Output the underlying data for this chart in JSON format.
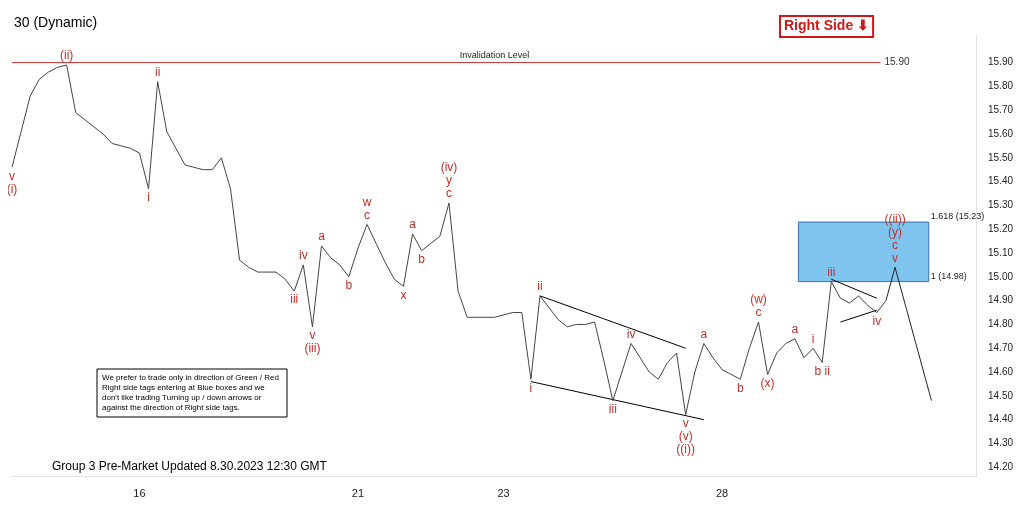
{
  "chart_data": {
    "type": "line",
    "title": "30 (Dynamic)",
    "marker": "none",
    "legend": false,
    "grid": false,
    "categories": [
      null,
      null,
      null,
      null,
      null,
      null,
      null,
      null,
      null,
      null,
      null,
      null,
      null,
      null,
      "16",
      null,
      null,
      null,
      null,
      null,
      null,
      null,
      null,
      null,
      null,
      null,
      null,
      null,
      null,
      null,
      null,
      null,
      null,
      null,
      null,
      null,
      null,
      null,
      "21",
      null,
      null,
      null,
      null,
      null,
      null,
      null,
      null,
      null,
      null,
      null,
      null,
      null,
      null,
      null,
      "23",
      null,
      null,
      null,
      null,
      null,
      null,
      null,
      null,
      null,
      null,
      null,
      null,
      null,
      null,
      null,
      null,
      null,
      null,
      null,
      null,
      null,
      null,
      null,
      "28",
      null,
      null,
      null,
      null,
      null,
      null,
      null,
      null,
      null,
      null,
      null,
      null,
      null,
      null,
      null,
      null,
      null,
      null,
      null,
      null,
      null,
      null,
      null,
      null,
      null,
      null,
      null,
      null
    ],
    "ylim": [
      14.16,
      16.02
    ],
    "yticks": [
      {
        "value": 14.2,
        "label": "14.20"
      },
      {
        "value": 14.3,
        "label": "14.30"
      },
      {
        "value": 14.4,
        "label": "14.40"
      },
      {
        "value": 14.5,
        "label": "14.50"
      },
      {
        "value": 14.6,
        "label": "14.60"
      },
      {
        "value": 14.7,
        "label": "14.70"
      },
      {
        "value": 14.8,
        "label": "14.80"
      },
      {
        "value": 14.9,
        "label": "14.90"
      },
      {
        "value": 15,
        "label": "15.00"
      },
      {
        "value": 15.1,
        "label": "15.10"
      },
      {
        "value": 15.2,
        "label": "15.20"
      },
      {
        "value": 15.3,
        "label": "15.30"
      },
      {
        "value": 15.4,
        "label": "15.40"
      },
      {
        "value": 15.5,
        "label": "15.50"
      },
      {
        "value": 15.6,
        "label": "15.60"
      },
      {
        "value": 15.7,
        "label": "15.70"
      },
      {
        "value": 15.8,
        "label": "15.80"
      },
      {
        "value": 15.9,
        "label": "15.90"
      }
    ],
    "series": [
      {
        "type": "line",
        "color": "#444444",
        "values": [
          15.46,
          15.61,
          15.76,
          15.83,
          15.86,
          15.88,
          15.89,
          15.69,
          15.66,
          15.63,
          15.6,
          15.56,
          15.55,
          15.54,
          15.52,
          15.37,
          15.82,
          15.61,
          15.54,
          15.47,
          15.46,
          15.45,
          15.45,
          15.5,
          15.37,
          15.07,
          15.04,
          15.02,
          15.02,
          15.02,
          14.99,
          14.94,
          15.05,
          14.79,
          15.13,
          15.08,
          15.05,
          15,
          15.12,
          15.22,
          15.14,
          15.06,
          14.99,
          14.96,
          15.18,
          15.11,
          15.14,
          15.17,
          15.31,
          14.94,
          14.83,
          14.83,
          14.83,
          14.83,
          14.84,
          14.85,
          14.85,
          14.57,
          14.92,
          14.87,
          14.82,
          14.79,
          14.8,
          14.8,
          14.81,
          14.65,
          14.48,
          14.6,
          14.72,
          14.66,
          14.6,
          14.57,
          14.64,
          14.68,
          14.42,
          14.6,
          14.72,
          14.66,
          14.61,
          14.59,
          14.57,
          14.7,
          14.81,
          14.59,
          14.68,
          14.72,
          14.74,
          14.66,
          14.7,
          14.64,
          14.98,
          14.91,
          14.89,
          14.92,
          14.88,
          14.85,
          14.9,
          null,
          null,
          null,
          null,
          null,
          null,
          null,
          null,
          null,
          null
        ],
        "value_labels": [
          "v\n(i)",
          null,
          null,
          null,
          null,
          null,
          "(ii)",
          null,
          null,
          null,
          null,
          null,
          null,
          null,
          null,
          "i",
          "ii",
          null,
          null,
          null,
          null,
          null,
          null,
          null,
          null,
          null,
          null,
          null,
          null,
          null,
          null,
          "iii",
          "iv",
          "v\n(iii)",
          "a",
          null,
          null,
          "b",
          null,
          "w\nc",
          null,
          null,
          null,
          "x",
          "a",
          "b",
          null,
          null,
          "(iv)\ny\nc",
          null,
          null,
          null,
          null,
          null,
          null,
          null,
          null,
          "i",
          "ii",
          null,
          null,
          null,
          null,
          null,
          null,
          null,
          "iii",
          null,
          "iv",
          null,
          null,
          null,
          null,
          null,
          "v\n(v)\n((i))",
          null,
          "a",
          null,
          null,
          null,
          "b",
          null,
          "(w)\nc",
          "(x)",
          null,
          null,
          "a",
          null,
          "i",
          "b ii",
          "iii",
          null,
          null,
          null,
          null,
          "iv",
          null,
          null,
          null,
          null,
          null,
          null,
          null,
          null,
          null,
          null,
          null
        ]
      },
      {
        "type": "line",
        "color": "#000000",
        "values": [
          null,
          null,
          null,
          null,
          null,
          null,
          null,
          null,
          null,
          null,
          null,
          null,
          null,
          null,
          null,
          null,
          null,
          null,
          null,
          null,
          null,
          null,
          null,
          null,
          null,
          null,
          null,
          null,
          null,
          null,
          null,
          null,
          null,
          null,
          null,
          null,
          null,
          null,
          null,
          null,
          null,
          null,
          null,
          null,
          null,
          null,
          null,
          null,
          null,
          null,
          null,
          null,
          null,
          null,
          null,
          null,
          null,
          null,
          14.92,
          null,
          null,
          null,
          null,
          null,
          null,
          null,
          null,
          null,
          null,
          null,
          null,
          null,
          null,
          null,
          14.7,
          null,
          null,
          null,
          null,
          null,
          null,
          null,
          null,
          null,
          null,
          null,
          null,
          null,
          null,
          null,
          null,
          null,
          null,
          null,
          null,
          null,
          null,
          null,
          null,
          null,
          null,
          null,
          null,
          null,
          null,
          null,
          null
        ]
      },
      {
        "type": "line",
        "color": "#000000",
        "values": [
          null,
          null,
          null,
          null,
          null,
          null,
          null,
          null,
          null,
          null,
          null,
          null,
          null,
          null,
          null,
          null,
          null,
          null,
          null,
          null,
          null,
          null,
          null,
          null,
          null,
          null,
          null,
          null,
          null,
          null,
          null,
          null,
          null,
          null,
          null,
          null,
          null,
          null,
          null,
          null,
          null,
          null,
          null,
          null,
          null,
          null,
          null,
          null,
          null,
          null,
          null,
          null,
          null,
          null,
          null,
          null,
          null,
          14.56,
          null,
          null,
          null,
          null,
          null,
          null,
          null,
          null,
          null,
          null,
          null,
          null,
          null,
          null,
          null,
          null,
          null,
          null,
          14.4,
          null,
          null,
          null,
          null,
          null,
          null,
          null,
          null,
          null,
          null,
          null,
          null,
          null,
          null,
          null,
          null,
          null,
          null,
          null,
          null,
          null,
          null,
          null,
          null,
          null,
          null,
          null,
          null,
          null,
          null
        ]
      },
      {
        "type": "line",
        "color": "#000000",
        "values": [
          null,
          null,
          null,
          null,
          null,
          null,
          null,
          null,
          null,
          null,
          null,
          null,
          null,
          null,
          null,
          null,
          null,
          null,
          null,
          null,
          null,
          null,
          null,
          null,
          null,
          null,
          null,
          null,
          null,
          null,
          null,
          null,
          null,
          null,
          null,
          null,
          null,
          null,
          null,
          null,
          null,
          null,
          null,
          null,
          null,
          null,
          null,
          null,
          null,
          null,
          null,
          null,
          null,
          null,
          null,
          null,
          null,
          null,
          null,
          null,
          null,
          null,
          null,
          null,
          null,
          null,
          null,
          null,
          null,
          null,
          null,
          null,
          null,
          null,
          null,
          null,
          null,
          null,
          null,
          null,
          null,
          null,
          null,
          null,
          null,
          null,
          null,
          null,
          null,
          null,
          14.99,
          null,
          null,
          null,
          null,
          14.91,
          null,
          null,
          null,
          null,
          null,
          null,
          null,
          null,
          null,
          null,
          null
        ]
      },
      {
        "type": "line",
        "color": "#000000",
        "values": [
          null,
          null,
          null,
          null,
          null,
          null,
          null,
          null,
          null,
          null,
          null,
          null,
          null,
          null,
          null,
          null,
          null,
          null,
          null,
          null,
          null,
          null,
          null,
          null,
          null,
          null,
          null,
          null,
          null,
          null,
          null,
          null,
          null,
          null,
          null,
          null,
          null,
          null,
          null,
          null,
          null,
          null,
          null,
          null,
          null,
          null,
          null,
          null,
          null,
          null,
          null,
          null,
          null,
          null,
          null,
          null,
          null,
          null,
          null,
          null,
          null,
          null,
          null,
          null,
          null,
          null,
          null,
          null,
          null,
          null,
          null,
          null,
          null,
          null,
          null,
          null,
          null,
          null,
          null,
          null,
          null,
          null,
          null,
          null,
          null,
          null,
          null,
          null,
          null,
          null,
          null,
          14.81,
          null,
          null,
          null,
          14.86,
          null,
          null,
          null,
          null,
          null,
          null,
          null,
          null,
          null,
          null,
          null
        ]
      },
      {
        "type": "line",
        "color": "#222222",
        "values": [
          null,
          null,
          null,
          null,
          null,
          null,
          null,
          null,
          null,
          null,
          null,
          null,
          null,
          null,
          null,
          null,
          null,
          null,
          null,
          null,
          null,
          null,
          null,
          null,
          null,
          null,
          null,
          null,
          null,
          null,
          null,
          null,
          null,
          null,
          null,
          null,
          null,
          null,
          null,
          null,
          null,
          null,
          null,
          null,
          null,
          null,
          null,
          null,
          null,
          null,
          null,
          null,
          null,
          null,
          null,
          null,
          null,
          null,
          null,
          null,
          null,
          null,
          null,
          null,
          null,
          null,
          null,
          null,
          null,
          null,
          null,
          null,
          null,
          null,
          null,
          null,
          null,
          null,
          null,
          null,
          null,
          null,
          null,
          null,
          null,
          null,
          null,
          null,
          null,
          null,
          null,
          null,
          null,
          null,
          null,
          null,
          14.9,
          15.04,
          null,
          null,
          null,
          14.48,
          null,
          null,
          null,
          null,
          null
        ],
        "value_labels": [
          null,
          null,
          null,
          null,
          null,
          null,
          null,
          null,
          null,
          null,
          null,
          null,
          null,
          null,
          null,
          null,
          null,
          null,
          null,
          null,
          null,
          null,
          null,
          null,
          null,
          null,
          null,
          null,
          null,
          null,
          null,
          null,
          null,
          null,
          null,
          null,
          null,
          null,
          null,
          null,
          null,
          null,
          null,
          null,
          null,
          null,
          null,
          null,
          null,
          null,
          null,
          null,
          null,
          null,
          null,
          null,
          null,
          null,
          null,
          null,
          null,
          null,
          null,
          null,
          null,
          null,
          null,
          null,
          null,
          null,
          null,
          null,
          null,
          null,
          null,
          null,
          null,
          null,
          null,
          null,
          null,
          null,
          null,
          null,
          null,
          null,
          null,
          null,
          null,
          null,
          null,
          null,
          null,
          null,
          null,
          null,
          null,
          "((ii))\n(y)\nc\nv",
          null,
          null,
          null,
          null,
          null,
          null,
          null,
          null,
          null
        ]
      }
    ],
    "ref_lines": [
      {
        "axis": "y",
        "value": 15.9,
        "label": "15.90",
        "color": "#d03030"
      }
    ],
    "bands": [
      {
        "axis": "y",
        "from": 14.98,
        "to": 15.23,
        "color": "#7fc4ee"
      }
    ],
    "annotations": [
      "Right Side ⬇",
      "Group 3 Pre-Market Updated 8.30.2023 12:30 GMT",
      "We prefer to trade only in direction of Green / Red Right side tags entering at Blue boxes and we don't like trading Turning up / down arrows or against the direction of Right side tags.",
      {
        "text": "Invalidation Level",
        "y": 15.9
      },
      "1.618 (15.23)",
      "1 (14.98)"
    ]
  }
}
